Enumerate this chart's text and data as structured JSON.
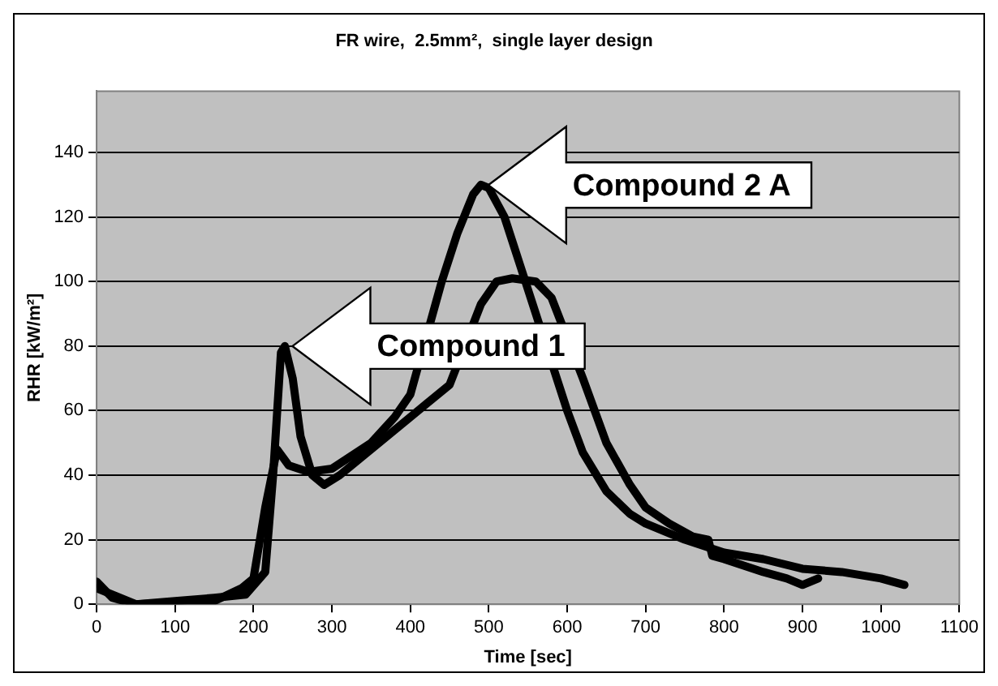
{
  "chart_data": {
    "type": "line",
    "title": "FR wire,  2.5mm²,  single layer design",
    "xlabel": "Time [sec]",
    "ylabel": "RHR [kW/m²]",
    "xlim": [
      0,
      1100
    ],
    "xticks": [
      0,
      100,
      200,
      300,
      400,
      500,
      600,
      700,
      800,
      900,
      1000,
      1100
    ],
    "ylim": [
      0,
      159
    ],
    "yticks": [
      0,
      20,
      40,
      60,
      80,
      100,
      120,
      140
    ],
    "grid": "y",
    "marker": "none",
    "line_style": "solid",
    "series": [
      {
        "color": "#000000",
        "x": [
          0,
          20,
          50,
          100,
          150,
          190,
          215,
          225,
          235,
          240,
          250,
          260,
          275,
          290,
          310,
          350,
          400,
          420,
          450,
          470,
          490,
          510,
          530,
          560,
          580,
          600,
          620,
          650,
          680,
          700,
          730,
          760,
          780,
          785,
          800,
          850,
          880,
          900,
          920
        ],
        "values": [
          7,
          2,
          0,
          1,
          2,
          3,
          10,
          40,
          78,
          80,
          70,
          52,
          40,
          37,
          40,
          48,
          58,
          62,
          68,
          null,
          93,
          100,
          101,
          100,
          95,
          null,
          70,
          50,
          37,
          30,
          25,
          21,
          20,
          15,
          14,
          10,
          8,
          6,
          8
        ]
      },
      {
        "color": "#000000",
        "x": [
          0,
          50,
          150,
          185,
          200,
          215,
          230,
          245,
          270,
          300,
          350,
          380,
          400,
          420,
          440,
          460,
          480,
          490,
          500,
          520,
          540,
          560,
          580,
          600,
          620,
          650,
          680,
          700,
          750,
          800,
          850,
          900,
          950,
          1000,
          1030
        ],
        "values": [
          5,
          0,
          1,
          5,
          8,
          30,
          48,
          43,
          41,
          42,
          50,
          58,
          65,
          null,
          100,
          115,
          127,
          130,
          129,
          120,
          105,
          90,
          null,
          60,
          47,
          35,
          28,
          25,
          20,
          16,
          14,
          11,
          10,
          8,
          6
        ]
      }
    ],
    "annotations": [
      "Compound 1",
      "Compound 2 A"
    ]
  }
}
